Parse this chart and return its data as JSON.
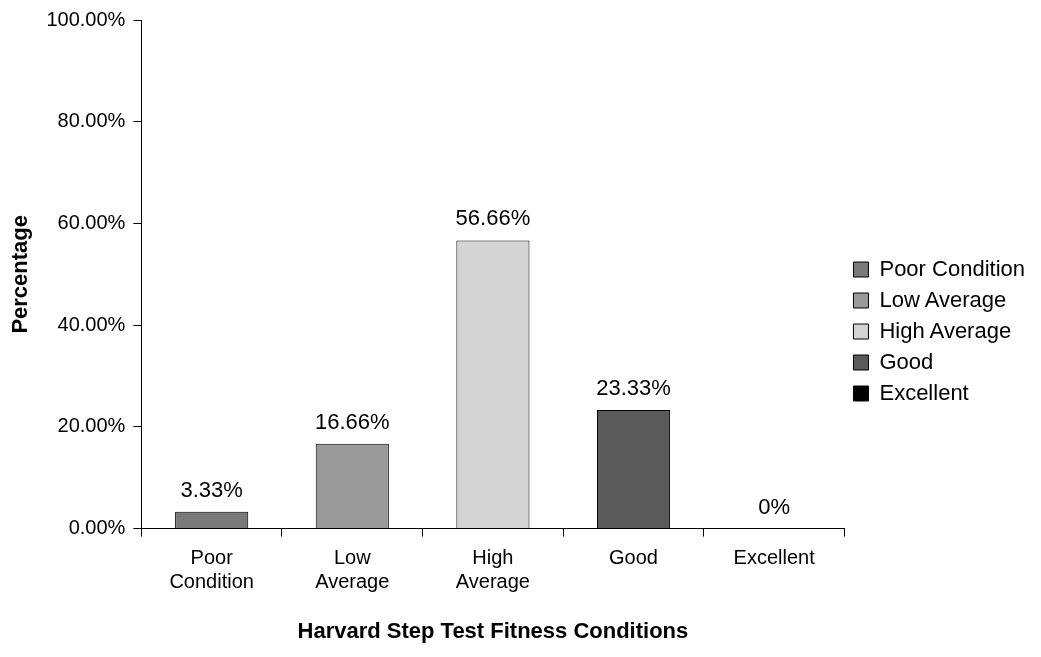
{
  "chart_data": {
    "type": "bar",
    "xlabel": "Harvard Step Test Fitness Conditions",
    "ylabel": "Percentage",
    "categories": [
      "Poor Condition",
      "Low Average",
      "High Average",
      "Good",
      "Excellent"
    ],
    "series": [
      {
        "name": "Poor Condition",
        "color": "#7a7a7a",
        "values": [
          3.33,
          null,
          null,
          null,
          null
        ],
        "value_labels": [
          "3.33%",
          null,
          null,
          null,
          null
        ]
      },
      {
        "name": "Low Average",
        "color": "#9a9a9a",
        "values": [
          null,
          16.66,
          null,
          null,
          null
        ],
        "value_labels": [
          null,
          "16.66%",
          null,
          null,
          null
        ]
      },
      {
        "name": "High Average",
        "color": "#d4d4d4",
        "values": [
          null,
          null,
          56.66,
          null,
          null
        ],
        "value_labels": [
          null,
          null,
          "56.66%",
          null,
          null
        ]
      },
      {
        "name": "Good",
        "color": "#5a5a5a",
        "values": [
          null,
          null,
          null,
          23.33,
          null
        ],
        "value_labels": [
          null,
          null,
          null,
          "23.33%",
          null
        ]
      },
      {
        "name": "Excellent",
        "color": "#000000",
        "values": [
          null,
          null,
          null,
          null,
          0
        ],
        "value_labels": [
          null,
          null,
          null,
          null,
          "0%"
        ]
      }
    ],
    "ylim": [
      0,
      100
    ],
    "yticks": [
      {
        "value": 0,
        "label": "0.00%"
      },
      {
        "value": 20,
        "label": "20.00%"
      },
      {
        "value": 40,
        "label": "40.00%"
      },
      {
        "value": 60,
        "label": "60.00%"
      },
      {
        "value": 80,
        "label": "80.00%"
      },
      {
        "value": 100,
        "label": "100.00%"
      }
    ],
    "grid": false,
    "legend": "right"
  }
}
